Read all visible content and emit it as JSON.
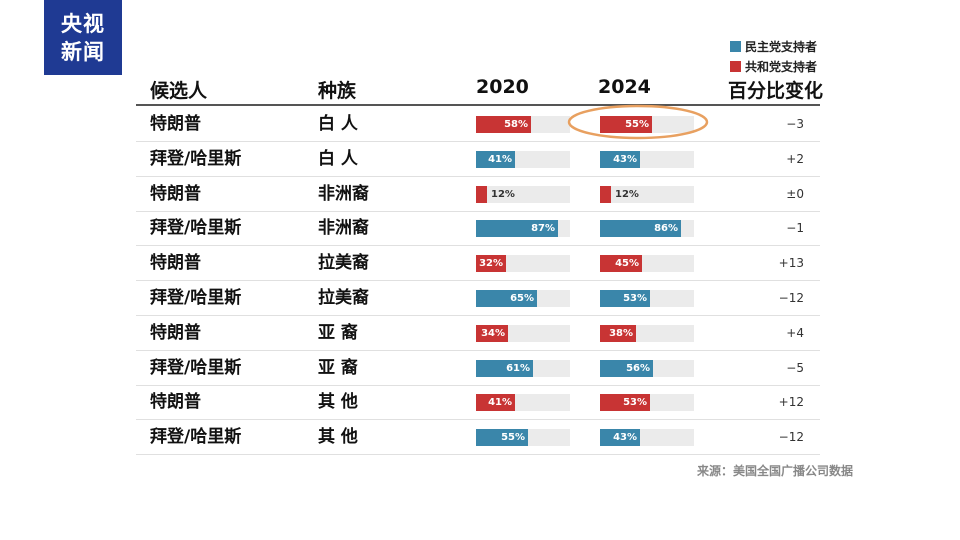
{
  "logo": {
    "line1": "央视",
    "line2": "新闻"
  },
  "legend": [
    {
      "label": "民主党支持者",
      "color": "#3a86aa"
    },
    {
      "label": "共和党支持者",
      "color": "#c83434"
    }
  ],
  "headers": {
    "candidate": "候选人",
    "race": "种族",
    "y2020": "2020",
    "y2024": "2024",
    "change": "百分比变化"
  },
  "source": "来源：美国全国广播公司数据",
  "highlight_color": "#e8a060",
  "chart_data": {
    "type": "table",
    "title": "",
    "series": [
      "2020",
      "2024"
    ],
    "rows": [
      {
        "candidate": "特朗普",
        "race": "白 人",
        "party": "R",
        "v2020": 58,
        "v2024": 55,
        "l2020": "58%",
        "l2024": "55%",
        "change": "−3"
      },
      {
        "candidate": "拜登/哈里斯",
        "race": "白 人",
        "party": "D",
        "v2020": 41,
        "v2024": 43,
        "l2020": "41%",
        "l2024": "43%",
        "change": "+2"
      },
      {
        "candidate": "特朗普",
        "race": "非洲裔",
        "party": "R",
        "v2020": 12,
        "v2024": 12,
        "l2020": "12%",
        "l2024": "12%",
        "change": "±0"
      },
      {
        "candidate": "拜登/哈里斯",
        "race": "非洲裔",
        "party": "D",
        "v2020": 87,
        "v2024": 86,
        "l2020": "87%",
        "l2024": "86%",
        "change": "−1"
      },
      {
        "candidate": "特朗普",
        "race": "拉美裔",
        "party": "R",
        "v2020": 32,
        "v2024": 45,
        "l2020": "32%",
        "l2024": "45%",
        "change": "+13"
      },
      {
        "candidate": "拜登/哈里斯",
        "race": "拉美裔",
        "party": "D",
        "v2020": 65,
        "v2024": 53,
        "l2020": "65%",
        "l2024": "53%",
        "change": "−12"
      },
      {
        "candidate": "特朗普",
        "race": "亚 裔",
        "party": "R",
        "v2020": 34,
        "v2024": 38,
        "l2020": "34%",
        "l2024": "38%",
        "change": "+4"
      },
      {
        "candidate": "拜登/哈里斯",
        "race": "亚 裔",
        "party": "D",
        "v2020": 61,
        "v2024": 56,
        "l2020": "61%",
        "l2024": "56%",
        "change": "−5"
      },
      {
        "candidate": "特朗普",
        "race": "其 他",
        "party": "R",
        "v2020": 41,
        "v2024": 53,
        "l2020": "41%",
        "l2024": "53%",
        "change": "+12"
      },
      {
        "candidate": "拜登/哈里斯",
        "race": "其 他",
        "party": "D",
        "v2020": 55,
        "v2024": 43,
        "l2020": "55%",
        "l2024": "43%",
        "change": "−12"
      }
    ]
  }
}
